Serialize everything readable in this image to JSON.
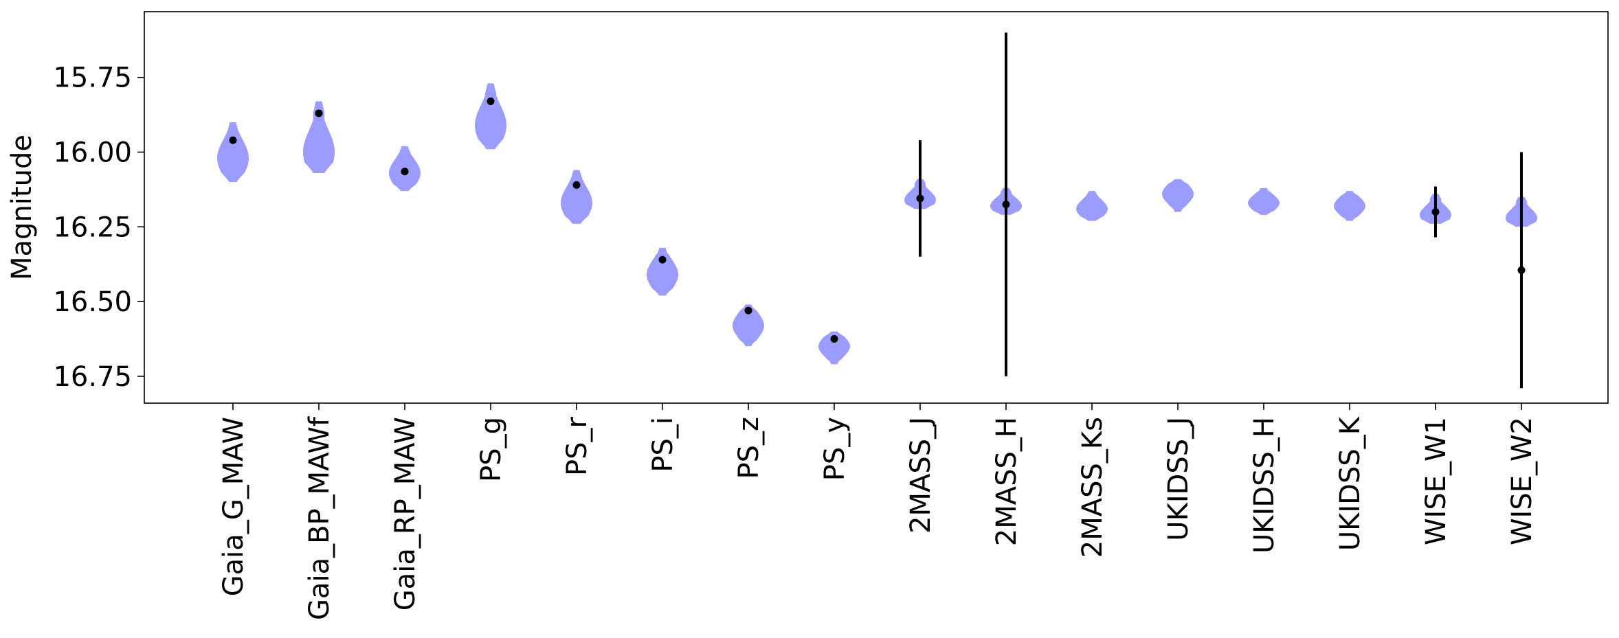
{
  "chart_data": {
    "type": "violin",
    "title": "",
    "xlabel": "",
    "ylabel": "Magnitude",
    "y_inverted": true,
    "ylim": [
      15.53,
      16.84
    ],
    "yticks": [
      "15.75",
      "16.00",
      "16.25",
      "16.50",
      "16.75"
    ],
    "grid": false,
    "legend": "none",
    "violin_color": "#9a9cff",
    "point_color": "#000000",
    "categories": [
      "Gaia_G_MAW",
      "Gaia_BP_MAWf",
      "Gaia_RP_MAW",
      "PS_g",
      "PS_r",
      "PS_i",
      "PS_z",
      "PS_y",
      "2MASS_J",
      "2MASS_H",
      "2MASS_Ks",
      "UKIDSS_J",
      "UKIDSS_H",
      "UKIDSS_K",
      "WISE_W1",
      "WISE_W2"
    ],
    "violins": [
      {
        "center": 16.005,
        "min": 15.9,
        "max": 16.1,
        "peak": 16.02
      },
      {
        "center": 15.985,
        "min": 15.83,
        "max": 16.07,
        "peak": 16.0
      },
      {
        "center": 16.065,
        "min": 15.98,
        "max": 16.13,
        "peak": 16.07
      },
      {
        "center": 15.89,
        "min": 15.77,
        "max": 15.99,
        "peak": 15.91
      },
      {
        "center": 16.165,
        "min": 16.06,
        "max": 16.24,
        "peak": 16.17
      },
      {
        "center": 16.405,
        "min": 16.32,
        "max": 16.48,
        "peak": 16.41
      },
      {
        "center": 16.58,
        "min": 16.51,
        "max": 16.65,
        "peak": 16.58
      },
      {
        "center": 16.645,
        "min": 16.6,
        "max": 16.71,
        "peak": 16.65
      },
      {
        "center": 16.13,
        "min": 16.09,
        "max": 16.19,
        "peak": 16.16
      },
      {
        "center": 16.16,
        "min": 16.12,
        "max": 16.21,
        "peak": 16.18
      },
      {
        "center": 16.175,
        "min": 16.13,
        "max": 16.23,
        "peak": 16.19
      },
      {
        "center": 16.13,
        "min": 16.09,
        "max": 16.2,
        "peak": 16.14
      },
      {
        "center": 16.16,
        "min": 16.12,
        "max": 16.21,
        "peak": 16.17
      },
      {
        "center": 16.175,
        "min": 16.13,
        "max": 16.23,
        "peak": 16.18
      },
      {
        "center": 16.18,
        "min": 16.14,
        "max": 16.24,
        "peak": 16.21
      },
      {
        "center": 16.19,
        "min": 16.15,
        "max": 16.25,
        "peak": 16.22
      }
    ],
    "points": [
      {
        "y": 15.96,
        "err": 0.0
      },
      {
        "y": 15.87,
        "err": 0.0
      },
      {
        "y": 16.065,
        "err": 0.0
      },
      {
        "y": 15.83,
        "err": 0.0
      },
      {
        "y": 16.11,
        "err": 0.0
      },
      {
        "y": 16.36,
        "err": 0.0
      },
      {
        "y": 16.53,
        "err": 0.0
      },
      {
        "y": 16.625,
        "err": 0.0
      },
      {
        "y": 16.155,
        "err": 0.195
      },
      {
        "y": 16.175,
        "err": 0.575
      },
      {
        "y": null,
        "err": null
      },
      {
        "y": null,
        "err": null
      },
      {
        "y": null,
        "err": null
      },
      {
        "y": null,
        "err": null
      },
      {
        "y": 16.2,
        "err": 0.085
      },
      {
        "y": 16.395,
        "err": 0.395
      }
    ]
  }
}
